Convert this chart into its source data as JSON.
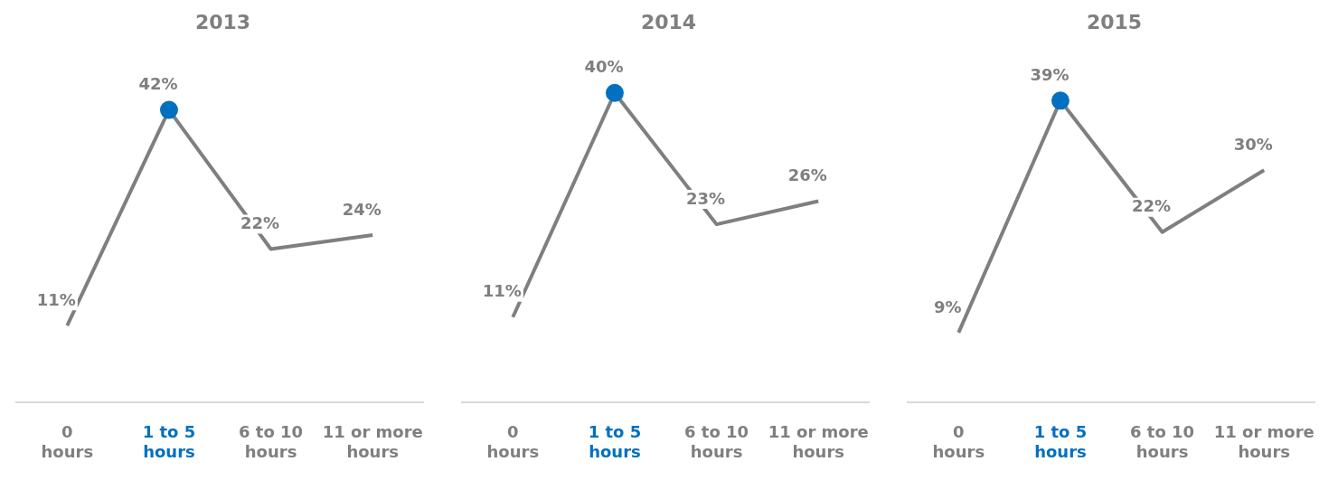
{
  "chart_data": [
    {
      "type": "line",
      "title": "2013",
      "categories": [
        "0 hours",
        "1 to 5 hours",
        "6 to 10 hours",
        "11 or more hours"
      ],
      "series": [
        {
          "color": "#7f7f7f",
          "colors": [
            null,
            "#0070c0",
            null,
            null
          ],
          "values": [
            11,
            42,
            22,
            24
          ],
          "value_labels": [
            "11%",
            "42%",
            "22%",
            "24%"
          ]
        }
      ],
      "grid": false,
      "legend": false,
      "tick_labels": "x"
    },
    {
      "type": "line",
      "title": "2014",
      "categories": [
        "0 hours",
        "1 to 5 hours",
        "6 to 10 hours",
        "11 or more hours"
      ],
      "series": [
        {
          "color": "#7f7f7f",
          "colors": [
            null,
            "#0070c0",
            null,
            null
          ],
          "values": [
            11,
            40,
            23,
            26
          ],
          "value_labels": [
            "11%",
            "40%",
            "23%",
            "26%"
          ]
        }
      ],
      "grid": false,
      "legend": false,
      "tick_labels": "x"
    },
    {
      "type": "line",
      "title": "2015",
      "categories": [
        "0 hours",
        "1 to 5 hours",
        "6 to 10 hours",
        "11 or more hours"
      ],
      "series": [
        {
          "color": "#7f7f7f",
          "colors": [
            null,
            "#0070c0",
            null,
            null
          ],
          "values": [
            9,
            39,
            22,
            30
          ],
          "value_labels": [
            "9%",
            "39%",
            "22%",
            "30%"
          ]
        }
      ],
      "grid": false,
      "legend": false,
      "tick_labels": "x"
    }
  ]
}
